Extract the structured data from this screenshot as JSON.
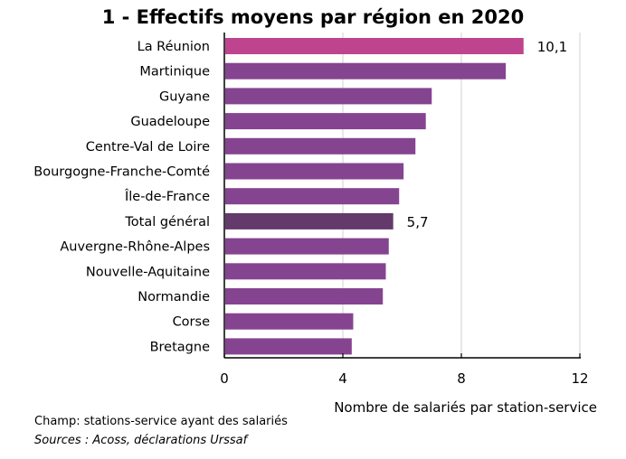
{
  "chart_data": {
    "type": "bar",
    "orientation": "horizontal",
    "title": "1 - Effectifs moyens par région en 2020",
    "categories": [
      "La Réunion",
      "Martinique",
      "Guyane",
      "Guadeloupe",
      "Centre-Val de Loire",
      "Bourgogne-Franche-Comté",
      "Île-de-France",
      "Total général",
      "Auvergne-Rhône-Alpes",
      "Nouvelle-Aquitaine",
      "Normandie",
      "Corse",
      "Bretagne"
    ],
    "values": [
      10.1,
      9.5,
      7.0,
      6.8,
      6.45,
      6.05,
      5.9,
      5.7,
      5.55,
      5.45,
      5.35,
      4.35,
      4.3
    ],
    "data_labels": {
      "0": "10,1",
      "7": "5,7"
    },
    "colors": [
      "#BE4490",
      "#854490",
      "#854490",
      "#854490",
      "#854490",
      "#854490",
      "#854490",
      "#633A6B",
      "#854490",
      "#854490",
      "#854490",
      "#854490",
      "#854490"
    ],
    "xlabel": "Nombre de salariés par station-service",
    "ylabel": "",
    "xlim": [
      0,
      12
    ],
    "xticks": [
      0,
      4,
      8,
      12
    ],
    "xtick_labels": [
      "0",
      "4",
      "8",
      "12"
    ],
    "grid": true
  },
  "footer": {
    "champ": "Champ: stations-service ayant des salariés",
    "sources": "Sources : Acoss, déclarations Urssaf"
  }
}
